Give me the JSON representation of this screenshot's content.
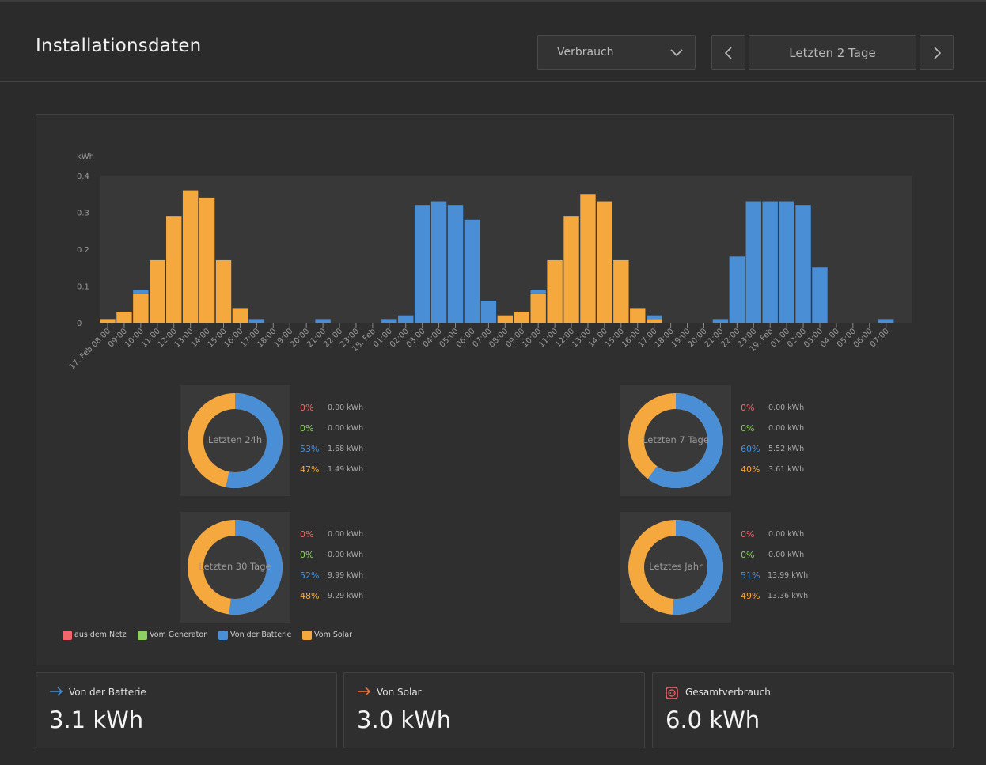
{
  "header": {
    "title": "Installationsdaten",
    "select_value": "Verbrauch",
    "range_label": "Letzten 2 Tage"
  },
  "colors": {
    "grid": "#f2676b",
    "generator": "#8ecf63",
    "battery": "#4a8fd6",
    "solar": "#f5a83d"
  },
  "chart_data": {
    "type": "bar",
    "stacked": true,
    "ylabel": "kWh",
    "ylim": [
      0,
      0.4
    ],
    "yticks": [
      0,
      0.1,
      0.2,
      0.3,
      0.4
    ],
    "categories": [
      "17. Feb 08:00",
      "09:00",
      "10:00",
      "11:00",
      "12:00",
      "13:00",
      "14:00",
      "15:00",
      "16:00",
      "17:00",
      "18:00",
      "19:00",
      "20:00",
      "21:00",
      "22:00",
      "23:00",
      "18. Feb",
      "01:00",
      "02:00",
      "03:00",
      "04:00",
      "05:00",
      "06:00",
      "07:00",
      "08:00",
      "09:00",
      "10:00",
      "11:00",
      "12:00",
      "13:00",
      "14:00",
      "15:00",
      "16:00",
      "17:00",
      "18:00",
      "19:00",
      "20:00",
      "21:00",
      "22:00",
      "23:00",
      "19. Feb",
      "01:00",
      "02:00",
      "03:00",
      "04:00",
      "05:00",
      "06:00",
      "07:00"
    ],
    "series": [
      {
        "name": "aus dem Netz",
        "color": "#f2676b",
        "values": [
          0,
          0,
          0,
          0,
          0,
          0,
          0,
          0,
          0,
          0,
          0,
          0,
          0,
          0,
          0,
          0,
          0,
          0,
          0,
          0,
          0,
          0,
          0,
          0,
          0,
          0,
          0,
          0,
          0,
          0,
          0,
          0,
          0,
          0,
          0,
          0,
          0,
          0,
          0,
          0,
          0,
          0,
          0,
          0,
          0,
          0,
          0,
          0
        ]
      },
      {
        "name": "Vom Generator",
        "color": "#8ecf63",
        "values": [
          0,
          0,
          0,
          0,
          0,
          0,
          0,
          0,
          0,
          0,
          0,
          0,
          0,
          0,
          0,
          0,
          0,
          0,
          0,
          0,
          0,
          0,
          0,
          0,
          0,
          0,
          0,
          0,
          0,
          0,
          0,
          0,
          0,
          0,
          0,
          0,
          0,
          0,
          0,
          0,
          0,
          0,
          0,
          0,
          0,
          0,
          0,
          0
        ]
      },
      {
        "name": "Vom Solar",
        "color": "#f5a83d",
        "values": [
          0.01,
          0.03,
          0.08,
          0.17,
          0.29,
          0.36,
          0.34,
          0.17,
          0.04,
          0,
          0,
          0,
          0,
          0,
          0,
          0,
          0,
          0,
          0,
          0,
          0,
          0,
          0,
          0,
          0.02,
          0.03,
          0.08,
          0.17,
          0.29,
          0.35,
          0.33,
          0.17,
          0.04,
          0.01,
          0,
          0,
          0,
          0,
          0,
          0,
          0,
          0,
          0,
          0,
          0,
          0,
          0,
          0
        ]
      },
      {
        "name": "Von der Batterie",
        "color": "#4a8fd6",
        "values": [
          0,
          0,
          0.01,
          0,
          0,
          0,
          0,
          0,
          0,
          0.01,
          0,
          0,
          0,
          0.01,
          0,
          0,
          0,
          0.01,
          0.02,
          0.32,
          0.33,
          0.32,
          0.28,
          0.06,
          0,
          0,
          0.01,
          0,
          0,
          0,
          0,
          0,
          0,
          0.01,
          0,
          0,
          0,
          0.01,
          0.18,
          0.33,
          0.33,
          0.33,
          0.32,
          0.15,
          0,
          0,
          0,
          0.01
        ]
      }
    ]
  },
  "summaries": [
    {
      "label": "Letzten 24h",
      "rows": [
        {
          "pct": "0%",
          "kwh": "0.00 kWh"
        },
        {
          "pct": "0%",
          "kwh": "0.00 kWh"
        },
        {
          "pct": "53%",
          "kwh": "1.68 kWh"
        },
        {
          "pct": "47%",
          "kwh": "1.49 kWh"
        }
      ],
      "battery_share": 0.53
    },
    {
      "label": "Letzten 7 Tage",
      "rows": [
        {
          "pct": "0%",
          "kwh": "0.00 kWh"
        },
        {
          "pct": "0%",
          "kwh": "0.00 kWh"
        },
        {
          "pct": "60%",
          "kwh": "5.52 kWh"
        },
        {
          "pct": "40%",
          "kwh": "3.61 kWh"
        }
      ],
      "battery_share": 0.6
    },
    {
      "label": "Letzten 30 Tage",
      "rows": [
        {
          "pct": "0%",
          "kwh": "0.00 kWh"
        },
        {
          "pct": "0%",
          "kwh": "0.00 kWh"
        },
        {
          "pct": "52%",
          "kwh": "9.99 kWh"
        },
        {
          "pct": "48%",
          "kwh": "9.29 kWh"
        }
      ],
      "battery_share": 0.52
    },
    {
      "label": "Letztes Jahr",
      "rows": [
        {
          "pct": "0%",
          "kwh": "0.00 kWh"
        },
        {
          "pct": "0%",
          "kwh": "0.00 kWh"
        },
        {
          "pct": "51%",
          "kwh": "13.99 kWh"
        },
        {
          "pct": "49%",
          "kwh": "13.36 kWh"
        }
      ],
      "battery_share": 0.51
    }
  ],
  "legend": [
    {
      "label": "aus dem Netz",
      "color": "#f2676b"
    },
    {
      "label": "Vom Generator",
      "color": "#8ecf63"
    },
    {
      "label": "Von der Batterie",
      "color": "#4a8fd6"
    },
    {
      "label": "Vom Solar",
      "color": "#f5a83d"
    }
  ],
  "kpis": [
    {
      "label": "Von der Batterie",
      "value": "3.1 kWh",
      "icon": "arrow-right-icon",
      "icon_color": "#4a8fd6"
    },
    {
      "label": "Von Solar",
      "value": "3.0 kWh",
      "icon": "arrow-right-icon",
      "icon_color": "#f0783c"
    },
    {
      "label": "Gesamtverbrauch",
      "value": "6.0 kWh",
      "icon": "socket-icon",
      "icon_color": "#f2676b"
    }
  ]
}
